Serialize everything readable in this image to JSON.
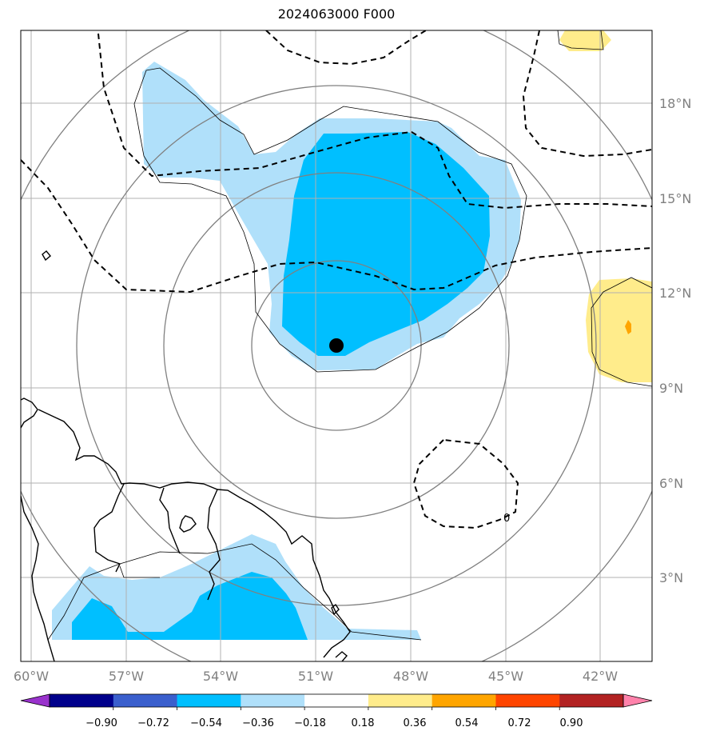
{
  "title": "2024063000 F000",
  "lon_labels": [
    "60°W",
    "57°W",
    "54°W",
    "51°W",
    "48°W",
    "45°W",
    "42°W"
  ],
  "lat_labels": [
    "18°N",
    "15°N",
    "12°N",
    "9°N",
    "6°N",
    "3°N"
  ],
  "contour_label": "0",
  "colorbar": {
    "ticks": [
      "−0.90",
      "−0.72",
      "−0.54",
      "−0.36",
      "−0.18",
      "0.18",
      "0.36",
      "0.54",
      "0.72",
      "0.90"
    ],
    "colors": [
      "#9932cc",
      "#00008b",
      "#3a5fcd",
      "#00bfff",
      "#b0e0fa",
      "#ffffff",
      "#ffec8b",
      "#ffa500",
      "#ff4500",
      "#b22222",
      "#ff82ab"
    ]
  },
  "colors": {
    "light_blue": "#b0e0fa",
    "deep_sky_blue": "#00bfff",
    "light_yellow": "#ffec8b",
    "orange": "#ffa500",
    "grid": "#b0b0b0",
    "range_rings": "#808080"
  },
  "center_marker": "black-dot"
}
